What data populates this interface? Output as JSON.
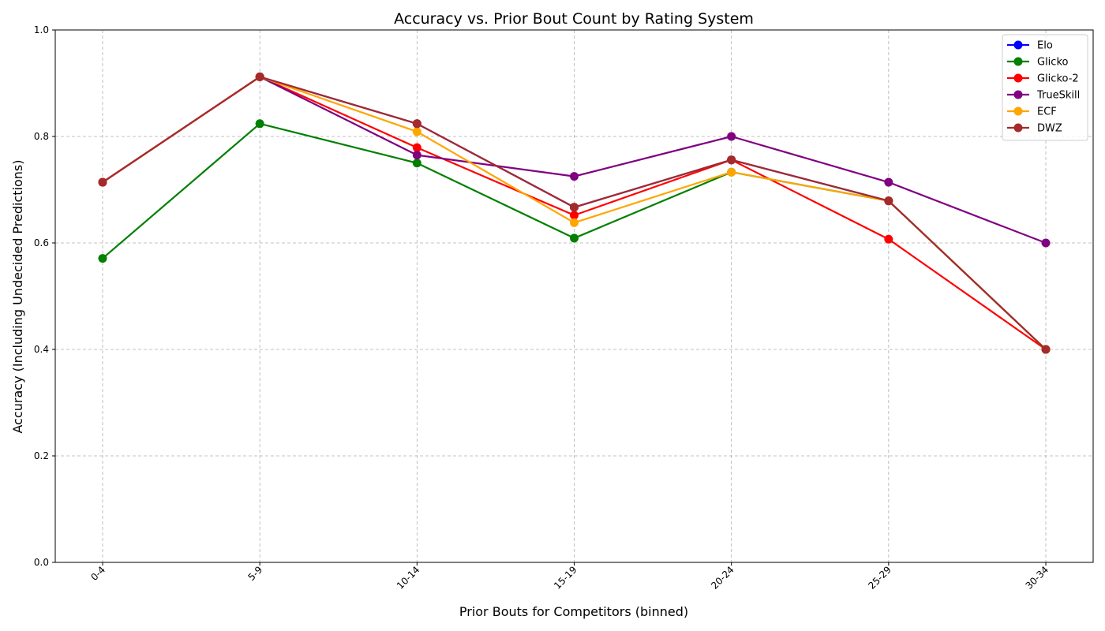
{
  "chart_data": {
    "type": "line",
    "title": "Accuracy vs. Prior Bout Count by Rating System",
    "xlabel": "Prior Bouts for Competitors (binned)",
    "ylabel": "Accuracy (Including Undecided Predictions)",
    "categories": [
      "0-4",
      "5-9",
      "10-14",
      "15-19",
      "20-24",
      "25-29",
      "30-34"
    ],
    "ylim": [
      0,
      1.0
    ],
    "yticks": [
      "0.0",
      "0.2",
      "0.4",
      "0.6",
      "0.8",
      "1.0"
    ],
    "grid": true,
    "legend_position": "top-right",
    "series": [
      {
        "name": "Elo",
        "color": "#0000ff",
        "values": [
          0.714,
          0.912,
          0.824,
          0.667,
          0.756,
          0.679,
          0.4
        ]
      },
      {
        "name": "Glicko",
        "color": "#008000",
        "values": [
          0.571,
          0.824,
          0.75,
          0.609,
          0.733,
          0.679,
          0.4
        ]
      },
      {
        "name": "Glicko-2",
        "color": "#ff0000",
        "values": [
          0.714,
          0.912,
          0.779,
          0.652,
          0.756,
          0.607,
          0.4
        ]
      },
      {
        "name": "TrueSkill",
        "color": "#800080",
        "values": [
          0.714,
          0.912,
          0.765,
          0.725,
          0.8,
          0.714,
          0.6
        ]
      },
      {
        "name": "ECF",
        "color": "#ffa500",
        "values": [
          0.714,
          0.912,
          0.809,
          0.638,
          0.733,
          0.679,
          0.4
        ]
      },
      {
        "name": "DWZ",
        "color": "#a52a2a",
        "values": [
          0.714,
          0.912,
          0.824,
          0.667,
          0.756,
          0.679,
          0.4
        ]
      }
    ]
  }
}
